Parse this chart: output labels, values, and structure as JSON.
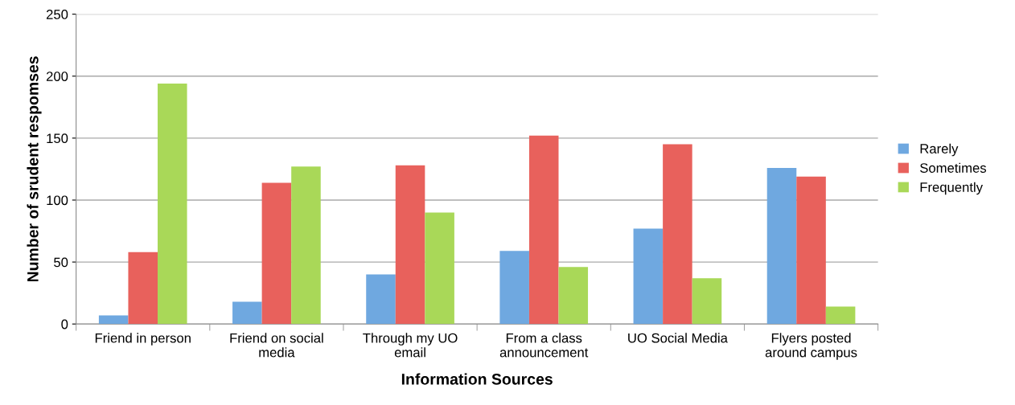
{
  "chart_data": {
    "type": "bar",
    "xlabel": "Information Sources",
    "ylabel": "Number of srudent respomses",
    "categories": [
      "Friend in person",
      "Friend on social\nmedia",
      "Through my UO\nemail",
      "From a class\nannouncement",
      "UO Social Media",
      "Flyers posted\naround campus"
    ],
    "series": [
      {
        "name": "Rarely",
        "color": "#6fa8e0",
        "values": [
          7,
          18,
          40,
          59,
          77,
          126
        ]
      },
      {
        "name": "Sometimes",
        "color": "#e8615c",
        "values": [
          58,
          114,
          128,
          152,
          145,
          119
        ]
      },
      {
        "name": "Frequently",
        "color": "#a9d858",
        "values": [
          194,
          127,
          90,
          46,
          37,
          14
        ]
      }
    ],
    "ylim": [
      0,
      250
    ],
    "yticks": [
      0,
      50,
      100,
      150,
      200,
      250
    ],
    "grid": "y",
    "legend": "right"
  }
}
